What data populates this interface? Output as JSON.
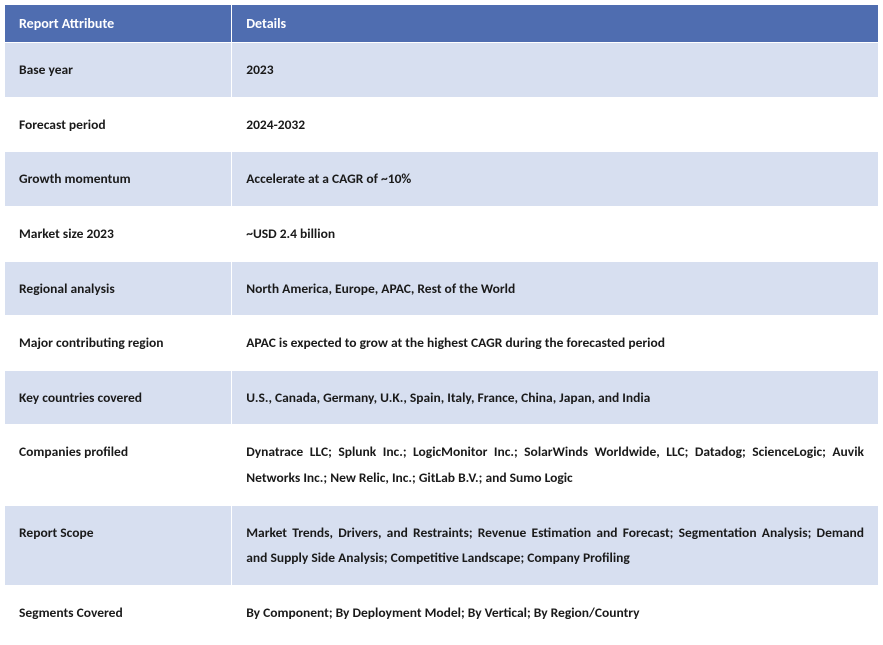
{
  "header_bg": "#4f6db0",
  "header_fg": "#ffffff",
  "row_alt_bg": "#d7dff0",
  "row_bg": "#ffffff",
  "cell_text_color": "#1a1a1a",
  "columns": {
    "attribute": "Report Attribute",
    "details": "Details"
  },
  "rows": [
    {
      "attribute": "Base year",
      "details": "2023",
      "alt": true
    },
    {
      "attribute": "Forecast period",
      "details": "2024-2032",
      "alt": false
    },
    {
      "attribute": "Growth momentum",
      "details": "Accelerate at a CAGR of ~10%",
      "alt": true
    },
    {
      "attribute": "Market size 2023",
      "details": "~USD 2.4 billion",
      "alt": false
    },
    {
      "attribute": "Regional analysis",
      "details": "North America, Europe, APAC, Rest of the World",
      "alt": true
    },
    {
      "attribute": "Major contributing region",
      "details": "APAC is expected to grow at the highest CAGR during the forecasted period",
      "alt": false
    },
    {
      "attribute": "Key countries covered",
      "details": "U.S., Canada, Germany, U.K., Spain, Italy, France, China, Japan, and India",
      "alt": true
    },
    {
      "attribute": "Companies profiled",
      "details": "Dynatrace LLC; Splunk Inc.; LogicMonitor Inc.; SolarWinds Worldwide, LLC; Datadog; ScienceLogic; Auvik Networks Inc.; New Relic, Inc.; GitLab B.V.; and Sumo Logic",
      "alt": false,
      "justify": true
    },
    {
      "attribute": "Report Scope",
      "details": "Market Trends, Drivers, and Restraints; Revenue Estimation and Forecast; Segmentation Analysis; Demand and Supply Side Analysis; Competitive Landscape; Company Profiling",
      "alt": true,
      "justify": true
    },
    {
      "attribute": "Segments Covered",
      "details": "By Component; By Deployment Model; By Vertical; By Region/Country",
      "alt": false
    }
  ]
}
